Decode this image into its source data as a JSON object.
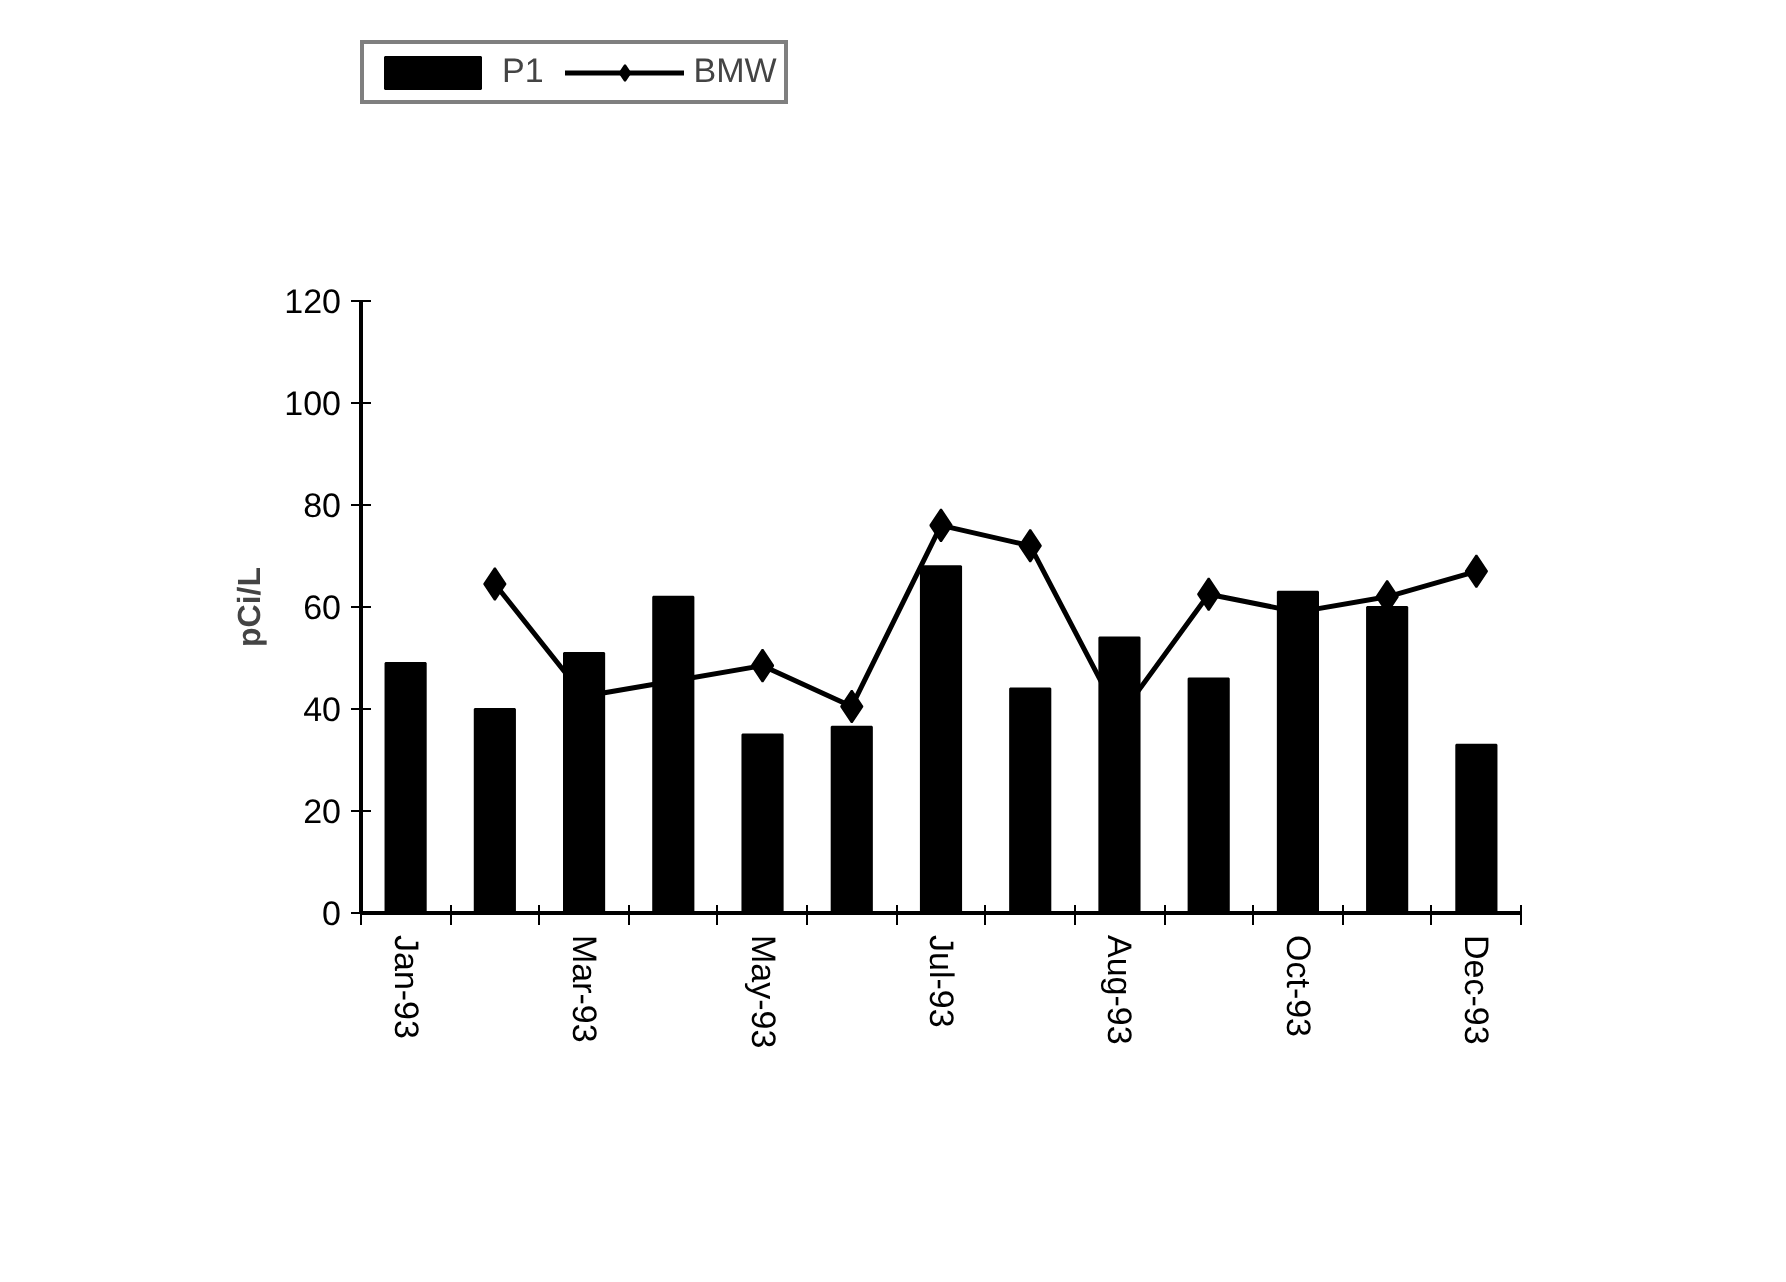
{
  "chart_data": {
    "type": "bar",
    "ylabel": "pCi/L",
    "categories": [
      "Jan-93",
      null,
      "Mar-93",
      null,
      "May-93",
      null,
      "Jul-93",
      null,
      "Aug-93",
      null,
      "Oct-93",
      null,
      "Dec-93"
    ],
    "series": [
      {
        "name": "P1",
        "color": "#000000",
        "values": [
          49,
          40,
          51,
          62,
          35,
          36.5,
          68,
          44,
          54,
          46,
          63,
          60,
          33
        ]
      },
      {
        "name": "BMW",
        "type": "line",
        "color": "#000000",
        "marker": "diamond",
        "values": [
          null,
          64.5,
          42.5,
          45.5,
          48.5,
          40.5,
          76,
          72,
          38.5,
          62.5,
          59,
          62,
          67
        ]
      }
    ],
    "ylim": [
      0,
      120
    ],
    "yticks": [
      0,
      20,
      40,
      60,
      80,
      100,
      120
    ],
    "grid": false,
    "legend": "top"
  }
}
